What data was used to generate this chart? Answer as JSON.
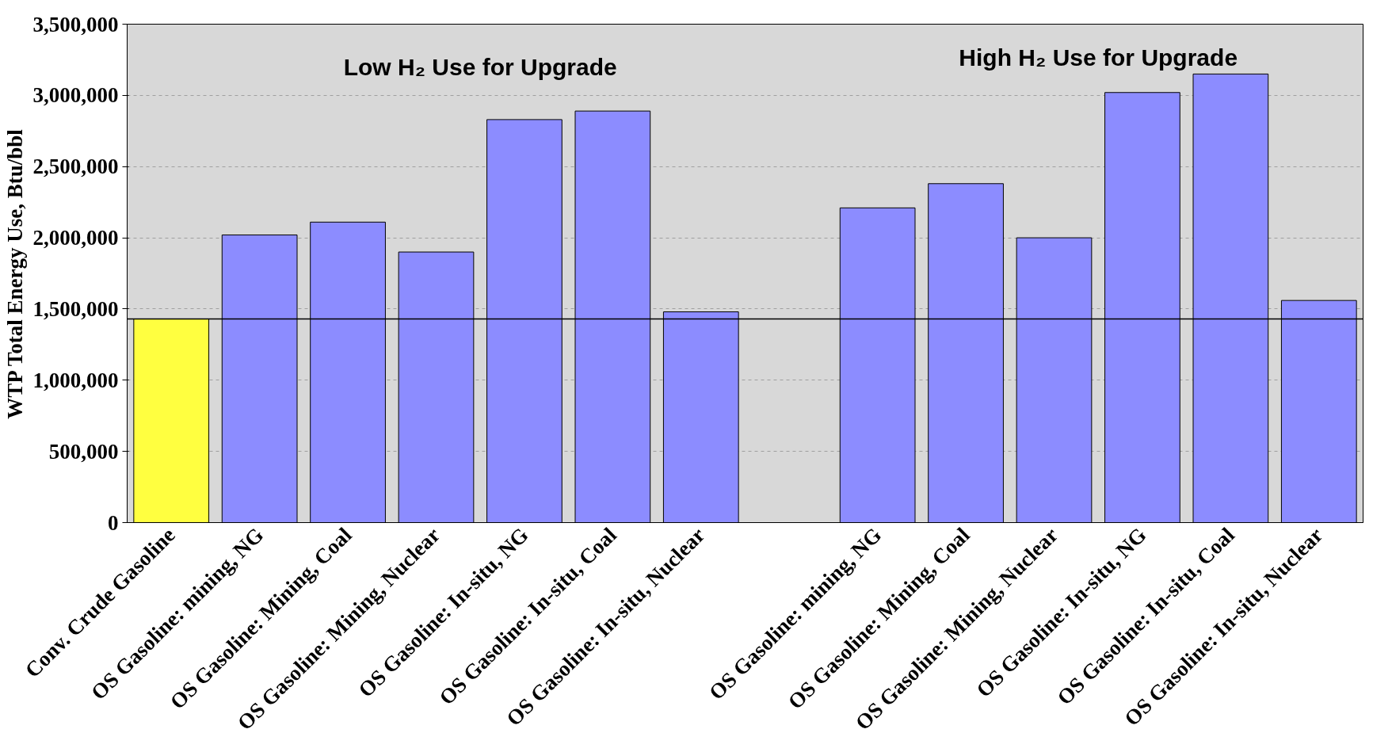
{
  "chart_data": {
    "type": "bar",
    "ylabel": "WTP Total Energy Use, Btu/bbl",
    "categories": [
      "Conv. Crude Gasoline",
      "OS Gasoline: mining, NG",
      "OS Gasoline: Mining, Coal",
      "OS Gasoline: Mining, Nuclear",
      "OS Gasoline: In-situ, NG",
      "OS Gasoline: In-situ, Coal",
      "OS Gasoline: In-situ, Nuclear",
      null,
      "OS Gasoline: mining, NG",
      "OS Gasoline: Mining, Coal",
      "OS Gasoline: Mining, Nuclear",
      "OS Gasoline: In-situ, NG",
      "OS Gasoline: In-situ, Coal",
      "OS Gasoline: In-situ, Nuclear"
    ],
    "values": [
      1430000,
      2020000,
      2110000,
      1900000,
      2830000,
      2890000,
      1480000,
      null,
      2210000,
      2380000,
      2000000,
      3020000,
      3150000,
      1560000
    ],
    "colors": [
      "#ffff40",
      "#8c8cff",
      "#8c8cff",
      "#8c8cff",
      "#8c8cff",
      "#8c8cff",
      "#8c8cff",
      null,
      "#8c8cff",
      "#8c8cff",
      "#8c8cff",
      "#8c8cff",
      "#8c8cff",
      "#8c8cff"
    ],
    "ylim": [
      0,
      3500000
    ],
    "yticks": [
      {
        "value": 0,
        "label": "0"
      },
      {
        "value": 500000,
        "label": "500,000"
      },
      {
        "value": 1000000,
        "label": "1,000,000"
      },
      {
        "value": 1500000,
        "label": "1,500,000"
      },
      {
        "value": 2000000,
        "label": "2,000,000"
      },
      {
        "value": 2500000,
        "label": "2,500,000"
      },
      {
        "value": 3000000,
        "label": "3,000,000"
      },
      {
        "value": 3500000,
        "label": "3,500,000"
      }
    ],
    "grid": "y",
    "ref_lines": [
      {
        "axis": "y",
        "value": 1430000,
        "label": null,
        "color": "#000000"
      }
    ],
    "annotations": [
      "Low H₂ Use for Upgrade",
      "High H₂ Use for Upgrade"
    ]
  }
}
